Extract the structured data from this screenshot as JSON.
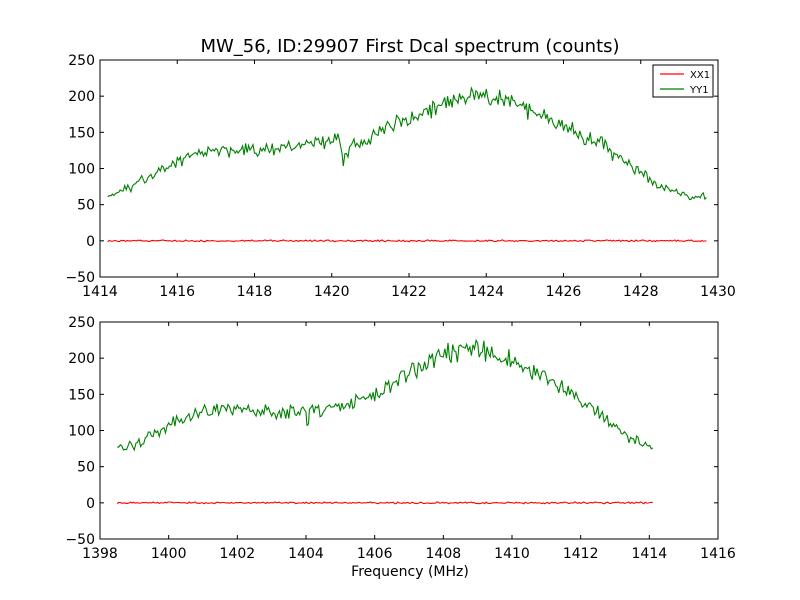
{
  "chart_data": [
    {
      "type": "line",
      "title": "MW_56, ID:29907 First Dcal spectrum (counts)",
      "xlabel": "",
      "ylabel": "",
      "xlim": [
        1414,
        1430
      ],
      "ylim": [
        -50,
        250
      ],
      "xticks": [
        1414,
        1416,
        1418,
        1420,
        1422,
        1424,
        1426,
        1428,
        1430
      ],
      "yticks": [
        -50,
        0,
        50,
        100,
        150,
        200,
        250
      ],
      "legend": "top-right",
      "series": [
        {
          "name": "XX1",
          "color": "#ff0000",
          "x": [
            1414.2,
            1429.7
          ],
          "y": [
            0,
            0
          ]
        },
        {
          "name": "YY1",
          "color": "#008000",
          "x": [
            1414.2,
            1414.6,
            1415.0,
            1415.4,
            1415.8,
            1416.2,
            1416.6,
            1417.0,
            1417.5,
            1418.0,
            1418.5,
            1419.0,
            1419.5,
            1420.0,
            1420.2,
            1420.3,
            1420.5,
            1420.8,
            1421.2,
            1421.6,
            1422.0,
            1422.5,
            1423.0,
            1423.5,
            1424.0,
            1424.5,
            1425.0,
            1425.5,
            1426.0,
            1426.5,
            1427.0,
            1427.5,
            1428.0,
            1428.5,
            1429.0,
            1429.3,
            1429.7
          ],
          "y": [
            62,
            70,
            80,
            93,
            105,
            115,
            121,
            124,
            125,
            126,
            128,
            131,
            135,
            138,
            140,
            110,
            135,
            133,
            150,
            158,
            168,
            178,
            190,
            200,
            200,
            195,
            184,
            172,
            160,
            146,
            132,
            112,
            92,
            77,
            66,
            62,
            60
          ]
        }
      ]
    },
    {
      "type": "line",
      "title": "",
      "xlabel": "Frequency (MHz)",
      "ylabel": "",
      "xlim": [
        1398,
        1416
      ],
      "ylim": [
        -50,
        250
      ],
      "xticks": [
        1398,
        1400,
        1402,
        1404,
        1406,
        1408,
        1410,
        1412,
        1414,
        1416
      ],
      "yticks": [
        -50,
        0,
        50,
        100,
        150,
        200,
        250
      ],
      "series": [
        {
          "color": "#ff0000",
          "x": [
            1398.5,
            1414.1
          ],
          "y": [
            0,
            0
          ]
        },
        {
          "color": "#008000",
          "x": [
            1398.5,
            1399.0,
            1399.5,
            1400.0,
            1400.5,
            1401.0,
            1401.5,
            1402.0,
            1402.5,
            1403.0,
            1403.5,
            1404.0,
            1404.05,
            1404.1,
            1404.5,
            1405.0,
            1405.5,
            1406.0,
            1406.5,
            1407.0,
            1407.5,
            1408.0,
            1408.5,
            1409.0,
            1409.5,
            1410.0,
            1410.5,
            1411.0,
            1411.5,
            1412.0,
            1412.5,
            1413.0,
            1413.5,
            1414.1
          ],
          "y": [
            77,
            80,
            92,
            108,
            120,
            126,
            128,
            130,
            128,
            126,
            126,
            126,
            102,
            126,
            130,
            136,
            142,
            150,
            162,
            178,
            192,
            203,
            208,
            212,
            205,
            195,
            182,
            170,
            160,
            145,
            125,
            105,
            88,
            76
          ]
        }
      ]
    }
  ]
}
